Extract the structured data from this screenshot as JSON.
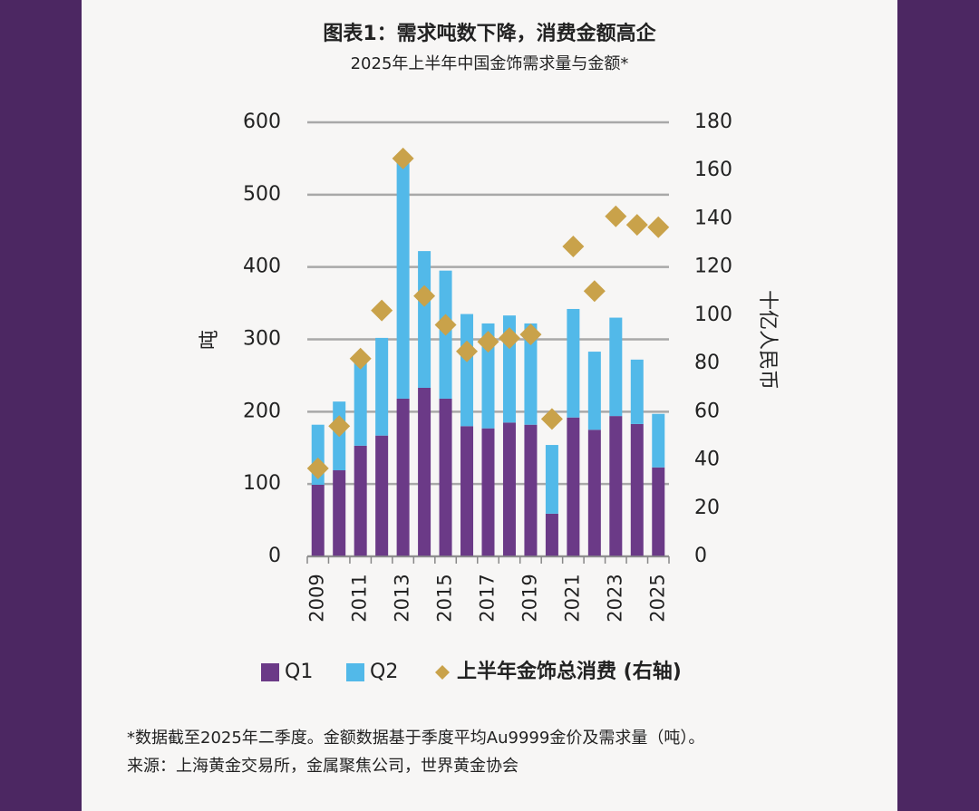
{
  "chart_data": {
    "type": "bar",
    "stacked": true,
    "title": "图表1：需求吨数下降，消费金额高企",
    "subtitle": "2025年上半年中国金饰需求量与金额*",
    "ylabel": "吨",
    "y2label": "十亿人民币",
    "categories": [
      "2009",
      null,
      "2011",
      null,
      "2013",
      null,
      "2015",
      null,
      "2017",
      null,
      "2019",
      null,
      "2021",
      null,
      "2023",
      null,
      "2025"
    ],
    "series": [
      {
        "name": "Q1",
        "type": "bar",
        "color": "#6b3a87",
        "values": [
          99,
          119,
          153,
          167,
          218,
          233,
          218,
          180,
          177,
          185,
          182,
          59,
          192,
          175,
          194,
          183,
          123
        ]
      },
      {
        "name": "Q2",
        "type": "bar",
        "color": "#52b9e9",
        "values": [
          83,
          95,
          117,
          135,
          328,
          189,
          177,
          155,
          145,
          148,
          140,
          95,
          150,
          108,
          136,
          89,
          74
        ]
      },
      {
        "name": "上半年金饰总消费 (右轴)",
        "type": "scatter",
        "axis": "y2",
        "color": "#c9a24a",
        "values": [
          36.5,
          54,
          82,
          102,
          165,
          108,
          96,
          85,
          89,
          90.5,
          92,
          57,
          128.5,
          110,
          141,
          137.5,
          136.5
        ]
      }
    ],
    "ylim": [
      0,
      600
    ],
    "yticks": [
      0,
      100,
      200,
      300,
      400,
      500,
      600
    ],
    "y2lim": [
      0,
      180
    ],
    "y2ticks": [
      0,
      20,
      40,
      60,
      80,
      100,
      120,
      140,
      160,
      180
    ],
    "grid": true,
    "legend": "bottom",
    "notes": [
      "*数据截至2025年二季度。金额数据基于季度平均Au9999金价及需求量（吨）。",
      "来源：上海黄金交易所，金属聚焦公司，世界黄金协会"
    ]
  }
}
